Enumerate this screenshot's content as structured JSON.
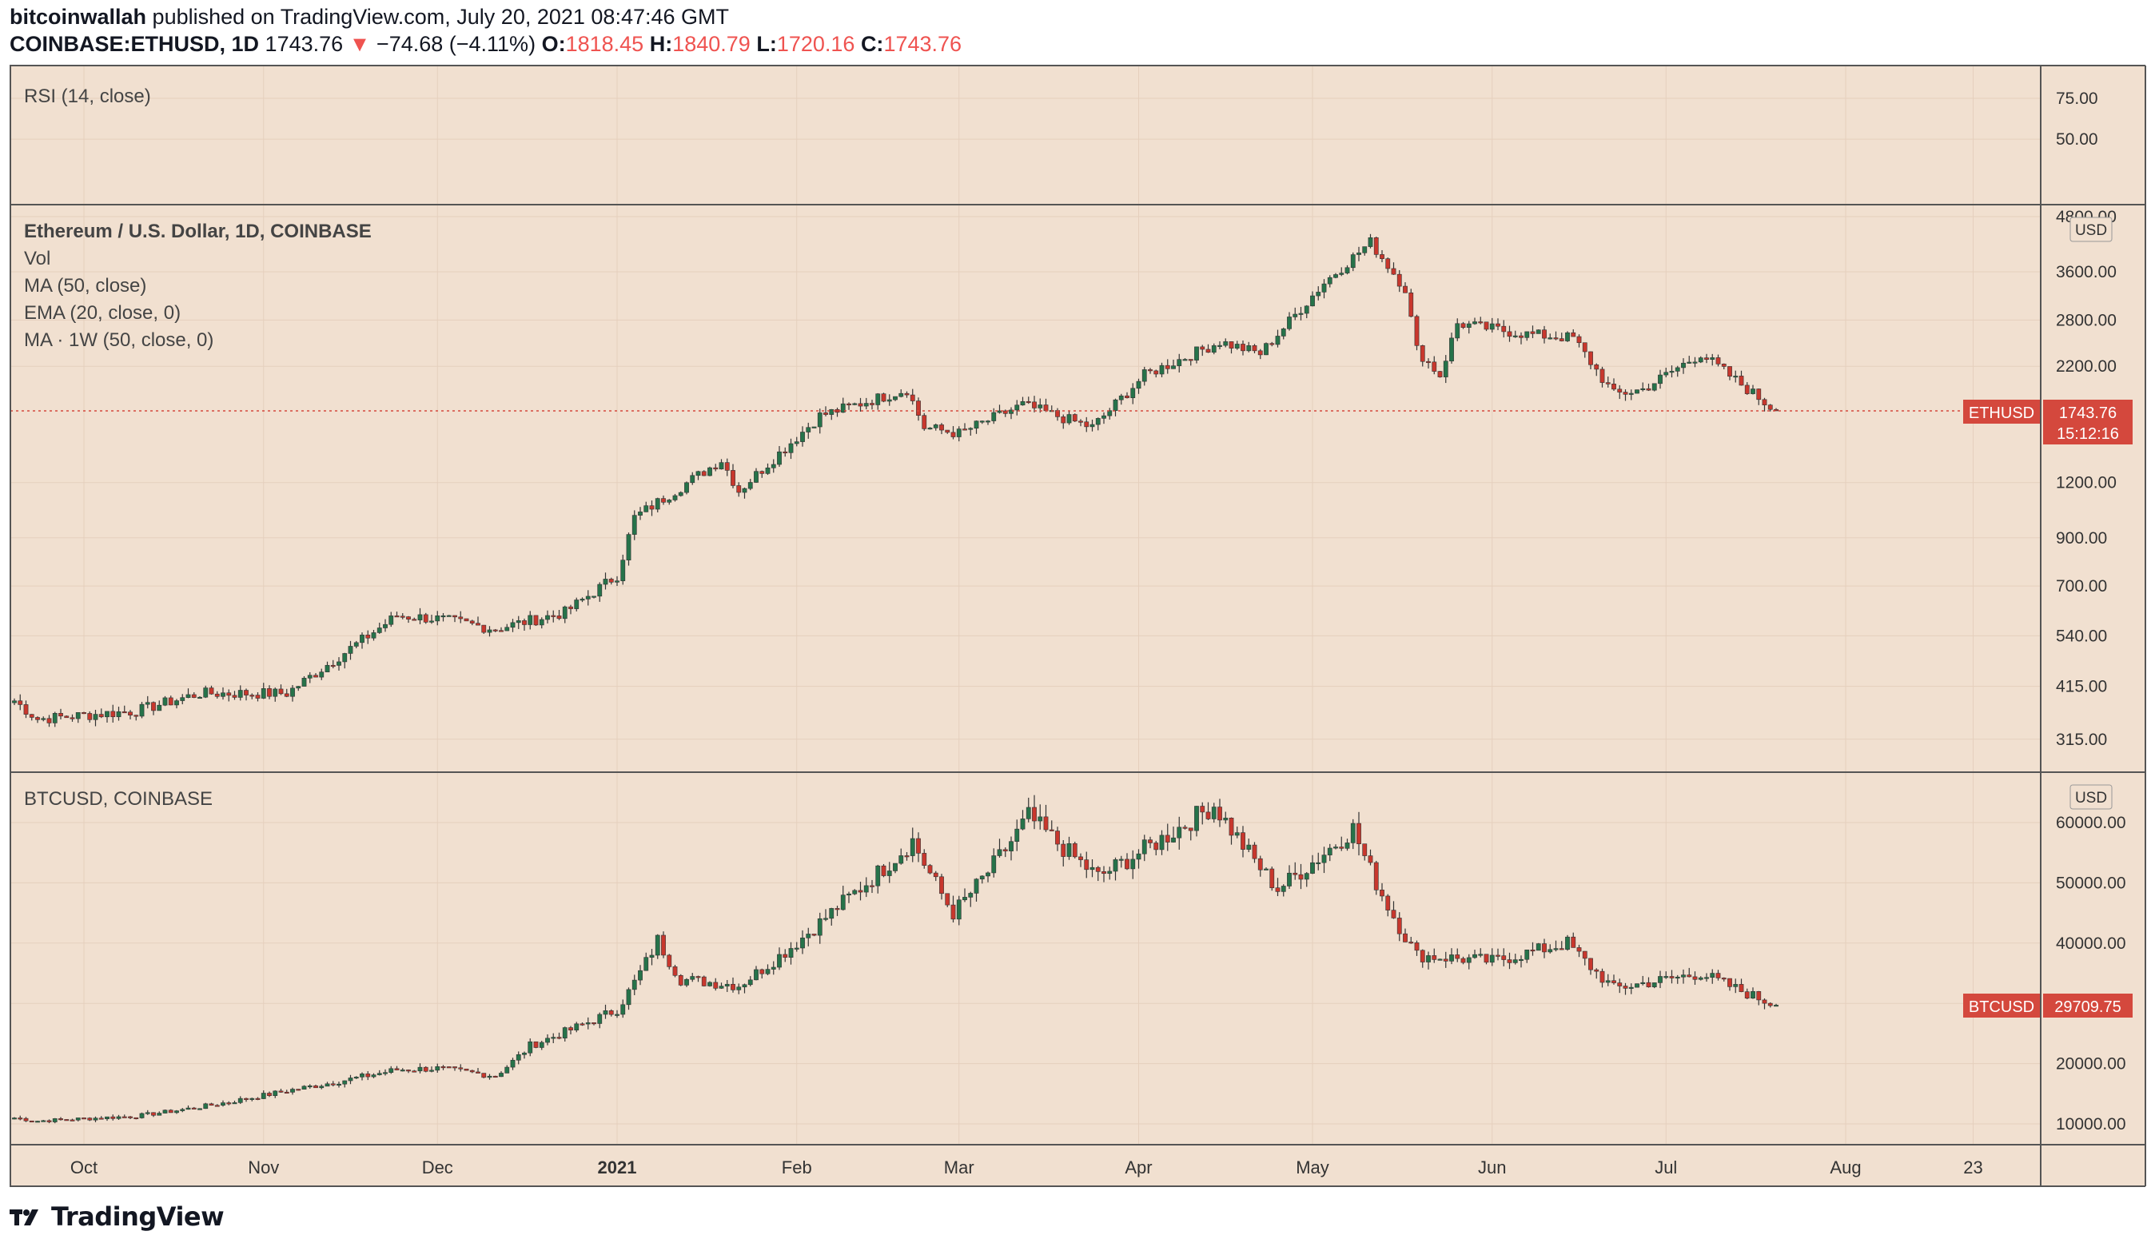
{
  "header": {
    "publisher": "bitcoinwallah",
    "publish_text": "published on TradingView.com, July 20, 2021 08:47:46 GMT",
    "symbol": "COINBASE:ETHUSD, 1D",
    "price": "1743.76",
    "change_arrow": "▼",
    "change": "−74.68 (−4.11%)",
    "o_label": "O:",
    "o_value": "1818.45",
    "h_label": "H:",
    "h_value": "1840.79",
    "l_label": "L:",
    "l_value": "1720.16",
    "c_label": "C:",
    "c_value": "1743.76"
  },
  "footer": {
    "brand": "TradingView"
  },
  "colors": {
    "background": "#f1e0d0",
    "up": "#26734a",
    "down": "#c8372d",
    "badge": "#d4483d",
    "grid": "#e5cfbd",
    "border": "#555555"
  },
  "chart_data": [
    {
      "type": "line",
      "pane": "RSI",
      "title": "RSI (14, close)",
      "y_ticks": [
        "75.00",
        "50.00"
      ]
    },
    {
      "type": "candlestick",
      "pane": "ETHUSD",
      "title": "Ethereum / U.S. Dollar, 1D, COINBASE",
      "indicators": [
        "Vol",
        "MA (50, close)",
        "EMA (20, close, 0)",
        "MA · 1W (50, close, 0)"
      ],
      "scale": "log",
      "currency": "USD",
      "y_ticks": [
        4800,
        3600,
        2800,
        2200,
        1200,
        900,
        700,
        540,
        415,
        315
      ],
      "y_tick_labels": [
        "4800.00",
        "3600.00",
        "2800.00",
        "2200.00",
        "1200.00",
        "900.00",
        "700.00",
        "540.00",
        "415.00",
        "315.00"
      ],
      "last_price_label": "ETHUSD",
      "last_price": "1743.76",
      "countdown": "15:12:16",
      "anchor_dates": [
        "2020-09-19",
        "2020-09-23",
        "2020-10-10",
        "2020-10-21",
        "2020-11-05",
        "2020-11-24",
        "2020-12-01",
        "2020-12-11",
        "2020-12-23",
        "2021-01-01",
        "2021-01-04",
        "2021-01-11",
        "2021-01-19",
        "2021-01-22",
        "2021-02-05",
        "2021-02-10",
        "2021-02-20",
        "2021-02-23",
        "2021-03-01",
        "2021-03-12",
        "2021-03-24",
        "2021-04-02",
        "2021-04-15",
        "2021-04-22",
        "2021-05-03",
        "2021-05-11",
        "2021-05-17",
        "2021-05-19",
        "2021-05-23",
        "2021-05-26",
        "2021-06-07",
        "2021-06-15",
        "2021-06-22",
        "2021-06-27",
        "2021-07-07",
        "2021-07-14",
        "2021-07-20"
      ],
      "anchor_closes": [
        385,
        350,
        365,
        400,
        400,
        600,
        590,
        560,
        610,
        740,
        1000,
        1150,
        1350,
        1150,
        1700,
        1780,
        1950,
        1600,
        1550,
        1800,
        1600,
        2100,
        2500,
        2350,
        3400,
        4200,
        3300,
        2400,
        2100,
        2750,
        2600,
        2550,
        1900,
        1950,
        2350,
        2000,
        1743.76
      ]
    },
    {
      "type": "candlestick",
      "pane": "BTCUSD",
      "title": "BTCUSD, COINBASE",
      "scale": "linear",
      "currency": "USD",
      "y_ticks": [
        60000,
        50000,
        40000,
        30000,
        20000,
        10000
      ],
      "y_tick_labels": [
        "60000.00",
        "50000.00",
        "40000.00",
        "30000.00",
        "20000.00",
        "10000.00"
      ],
      "last_price_label": "BTCUSD",
      "last_price": "29709.75",
      "anchor_dates": [
        "2020-09-19",
        "2020-09-23",
        "2020-10-10",
        "2020-10-21",
        "2020-11-05",
        "2020-11-24",
        "2020-12-01",
        "2020-12-11",
        "2020-12-17",
        "2021-01-01",
        "2021-01-08",
        "2021-01-12",
        "2021-01-22",
        "2021-02-08",
        "2021-02-21",
        "2021-02-28",
        "2021-03-13",
        "2021-03-25",
        "2021-04-14",
        "2021-04-25",
        "2021-05-08",
        "2021-05-12",
        "2021-05-19",
        "2021-06-01",
        "2021-06-14",
        "2021-06-22",
        "2021-07-07",
        "2021-07-20"
      ],
      "anchor_closes": [
        11000,
        10500,
        11300,
        12800,
        15500,
        19000,
        19200,
        18000,
        23000,
        29000,
        40500,
        34000,
        33000,
        46000,
        57000,
        45000,
        61000,
        51000,
        63000,
        49000,
        59000,
        50000,
        38000,
        37000,
        40000,
        32500,
        35000,
        29709.75
      ]
    }
  ],
  "x_axis": {
    "labels": [
      "Oct",
      "Nov",
      "Dec",
      "2021",
      "Feb",
      "Mar",
      "Apr",
      "May",
      "Jun",
      "Jul",
      "Aug",
      "23"
    ],
    "dates": [
      "2020-10-01",
      "2020-11-01",
      "2020-12-01",
      "2021-01-01",
      "2021-02-01",
      "2021-03-01",
      "2021-04-01",
      "2021-05-01",
      "2021-06-01",
      "2021-07-01",
      "2021-08-01",
      "2021-08-23"
    ]
  }
}
